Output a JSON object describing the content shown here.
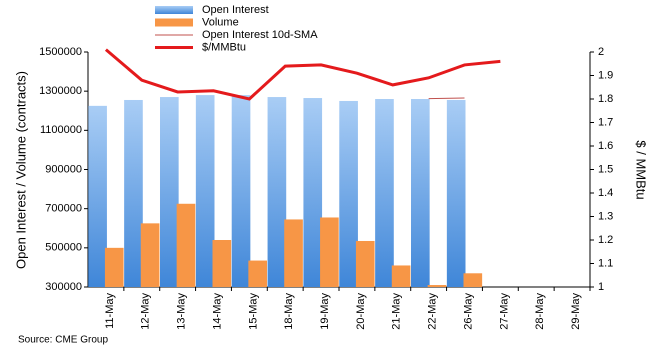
{
  "chart_data": {
    "type": "bar-line",
    "categories": [
      "11-May",
      "12-May",
      "13-May",
      "14-May",
      "15-May",
      "18-May",
      "19-May",
      "20-May",
      "21-May",
      "22-May",
      "26-May",
      "27-May",
      "28-May",
      "29-May"
    ],
    "series": [
      {
        "name": "Open Interest",
        "type": "bar",
        "color": "#5b9bd5",
        "values": [
          1225000,
          1255000,
          1270000,
          1280000,
          1280000,
          1270000,
          1265000,
          1250000,
          1260000,
          1260000,
          1255000,
          null,
          null,
          null
        ]
      },
      {
        "name": "Volume",
        "type": "bar",
        "color": "#f79646",
        "values": [
          500000,
          625000,
          725000,
          540000,
          435000,
          645000,
          655000,
          535000,
          410000,
          310000,
          370000,
          null,
          null,
          null
        ]
      },
      {
        "name": "Open Interest 10d-SMA",
        "type": "line",
        "color": "#c0504d",
        "values": [
          null,
          null,
          null,
          null,
          null,
          null,
          null,
          null,
          null,
          1262000,
          1265000,
          null,
          null,
          null
        ]
      },
      {
        "name": "$/MMBtu",
        "type": "line",
        "axis": "y2",
        "color": "#e41a1c",
        "values": [
          2.01,
          1.88,
          1.83,
          1.835,
          1.8,
          1.94,
          1.945,
          1.91,
          1.86,
          1.89,
          1.945,
          1.96,
          null,
          null
        ]
      }
    ],
    "ylabel": "Open Interest / Volume (contracts)",
    "y2label": "$ / MMBtu",
    "ylim": [
      300000,
      1500000
    ],
    "yticks": [
      300000,
      500000,
      700000,
      900000,
      1100000,
      1300000,
      1500000
    ],
    "y2lim": [
      1,
      2
    ],
    "y2ticks": [
      1,
      1.1,
      1.2,
      1.3,
      1.4,
      1.5,
      1.6,
      1.7,
      1.8,
      1.9,
      2
    ],
    "source": "Source: CME Group"
  }
}
